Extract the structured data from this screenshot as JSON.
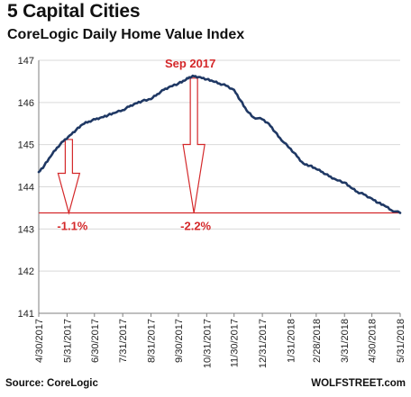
{
  "header": {
    "title": "5 Capital Cities",
    "subtitle": "CoreLogic Daily Home Value Index"
  },
  "footer": {
    "source": "Source: CoreLogic",
    "watermark": "WOLFSTREET.com"
  },
  "colors": {
    "line": "#1f3864",
    "annotation": "#d4282a",
    "grid": "#d9d9d9",
    "axis": "#7f7f7f"
  },
  "chart_data": {
    "type": "line",
    "title": "5 Capital Cities",
    "subtitle": "CoreLogic Daily Home Value Index",
    "xlabel": "",
    "ylabel": "",
    "ylim": [
      141,
      147
    ],
    "yticks": [
      141,
      142,
      143,
      144,
      145,
      146,
      147
    ],
    "xlim": [
      "2017-04-30",
      "2018-05-31"
    ],
    "xticks": [
      "4/30/2017",
      "5/31/2017",
      "6/30/2017",
      "7/31/2017",
      "8/31/2017",
      "9/30/2017",
      "10/31/2017",
      "11/30/2017",
      "12/31/2017",
      "1/31/2018",
      "2/28/2018",
      "3/31/2018",
      "4/30/2018",
      "5/31/2018"
    ],
    "grid": "horizontal",
    "legend": "none",
    "series": [
      {
        "points": [
          [
            "2017-04-30",
            144.35
          ],
          [
            "2017-05-06",
            144.5
          ],
          [
            "2017-05-13",
            144.72
          ],
          [
            "2017-05-20",
            144.93
          ],
          [
            "2017-05-27",
            145.08
          ],
          [
            "2017-06-03",
            145.22
          ],
          [
            "2017-06-10",
            145.35
          ],
          [
            "2017-06-17",
            145.48
          ],
          [
            "2017-06-24",
            145.55
          ],
          [
            "2017-07-01",
            145.6
          ],
          [
            "2017-07-08",
            145.65
          ],
          [
            "2017-07-15",
            145.7
          ],
          [
            "2017-07-22",
            145.75
          ],
          [
            "2017-07-31",
            145.82
          ],
          [
            "2017-08-07",
            145.9
          ],
          [
            "2017-08-14",
            145.98
          ],
          [
            "2017-08-21",
            146.03
          ],
          [
            "2017-08-31",
            146.08
          ],
          [
            "2017-09-07",
            146.2
          ],
          [
            "2017-09-14",
            146.3
          ],
          [
            "2017-09-21",
            146.38
          ],
          [
            "2017-09-30",
            146.45
          ],
          [
            "2017-10-07",
            146.52
          ],
          [
            "2017-10-12",
            146.6
          ],
          [
            "2017-10-17",
            146.62
          ],
          [
            "2017-10-24",
            146.6
          ],
          [
            "2017-10-31",
            146.55
          ],
          [
            "2017-11-07",
            146.5
          ],
          [
            "2017-11-14",
            146.45
          ],
          [
            "2017-11-21",
            146.4
          ],
          [
            "2017-11-30",
            146.3
          ],
          [
            "2017-12-07",
            146.05
          ],
          [
            "2017-12-14",
            145.8
          ],
          [
            "2017-12-21",
            145.65
          ],
          [
            "2017-12-31",
            145.6
          ],
          [
            "2018-01-07",
            145.5
          ],
          [
            "2018-01-14",
            145.3
          ],
          [
            "2018-01-21",
            145.1
          ],
          [
            "2018-01-31",
            144.9
          ],
          [
            "2018-02-07",
            144.72
          ],
          [
            "2018-02-14",
            144.55
          ],
          [
            "2018-02-21",
            144.5
          ],
          [
            "2018-02-28",
            144.42
          ],
          [
            "2018-03-07",
            144.35
          ],
          [
            "2018-03-14",
            144.25
          ],
          [
            "2018-03-21",
            144.18
          ],
          [
            "2018-03-31",
            144.1
          ],
          [
            "2018-04-07",
            143.98
          ],
          [
            "2018-04-14",
            143.88
          ],
          [
            "2018-04-21",
            143.82
          ],
          [
            "2018-04-30",
            143.72
          ],
          [
            "2018-05-07",
            143.62
          ],
          [
            "2018-05-14",
            143.55
          ],
          [
            "2018-05-21",
            143.45
          ],
          [
            "2018-05-31",
            143.38
          ]
        ]
      }
    ],
    "baseline": 143.38,
    "annotations": [
      {
        "text": "Sep 2017",
        "x": "2017-10-17"
      },
      {
        "text": "-1.1%",
        "x": "2017-05-31"
      },
      {
        "text": "-2.2%",
        "x": "2017-10-17"
      }
    ]
  }
}
